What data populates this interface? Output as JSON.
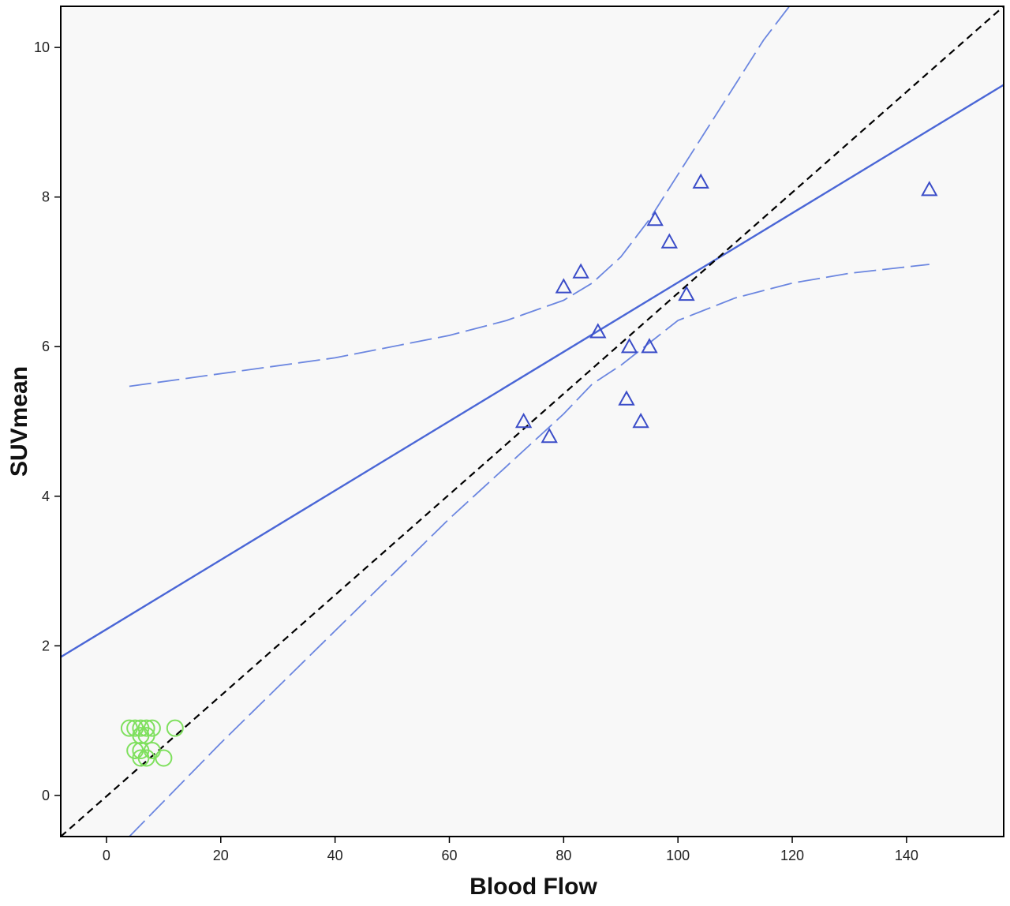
{
  "chart_data": {
    "type": "scatter",
    "title": "",
    "xlabel": "Blood Flow",
    "ylabel": "SUVmean",
    "xlim": [
      -8,
      157
    ],
    "ylim": [
      -0.55,
      10.55
    ],
    "xticks": [
      0,
      20,
      40,
      60,
      80,
      100,
      120,
      140
    ],
    "yticks": [
      0,
      2,
      4,
      6,
      8,
      10
    ],
    "grid": false,
    "legend": "none",
    "colors": {
      "plot_background": "#f8f8f8",
      "frame": "#000000",
      "green_points": "#7fe05e",
      "blue_points": "#3a4cc8",
      "fit_line": "#4a66d6",
      "ci_line": "#6b86e0",
      "identity_line": "#000000"
    },
    "series": [
      {
        "marker": "circle",
        "color": "#7fe05e",
        "points": [
          [
            4,
            0.9
          ],
          [
            5,
            0.9
          ],
          [
            6,
            0.9
          ],
          [
            7,
            0.9
          ],
          [
            8,
            0.9
          ],
          [
            12,
            0.9
          ],
          [
            6,
            0.8
          ],
          [
            7,
            0.8
          ],
          [
            5,
            0.6
          ],
          [
            6,
            0.6
          ],
          [
            8,
            0.6
          ],
          [
            6,
            0.5
          ],
          [
            7,
            0.5
          ],
          [
            10,
            0.5
          ]
        ]
      },
      {
        "marker": "triangle",
        "color": "#3a4cc8",
        "points": [
          [
            73,
            5.0
          ],
          [
            77.5,
            4.8
          ],
          [
            80,
            6.8
          ],
          [
            83,
            7.0
          ],
          [
            86,
            6.2
          ],
          [
            91,
            5.3
          ],
          [
            91.5,
            6.0
          ],
          [
            93.5,
            5.0
          ],
          [
            95,
            6.0
          ],
          [
            96,
            7.7
          ],
          [
            98.5,
            7.4
          ],
          [
            101.5,
            6.7
          ],
          [
            104,
            8.2
          ],
          [
            144,
            8.1
          ]
        ]
      }
    ],
    "lines": [
      {
        "kind": "fit",
        "style": "solid",
        "color": "#4a66d6",
        "points": [
          [
            -8,
            1.85
          ],
          [
            157,
            9.5
          ]
        ]
      },
      {
        "kind": "identity",
        "style": "dashed",
        "color": "#000000",
        "points": [
          [
            -8,
            -0.55
          ],
          [
            157,
            10.55
          ]
        ]
      },
      {
        "kind": "ci-upper",
        "style": "long-dash",
        "color": "#6b86e0",
        "points": [
          [
            4,
            5.47
          ],
          [
            40,
            5.85
          ],
          [
            60,
            6.15
          ],
          [
            70,
            6.35
          ],
          [
            80,
            6.62
          ],
          [
            85,
            6.85
          ],
          [
            90,
            7.2
          ],
          [
            95,
            7.7
          ],
          [
            100,
            8.3
          ],
          [
            105,
            8.9
          ],
          [
            110,
            9.5
          ],
          [
            115,
            10.1
          ],
          [
            120,
            10.6
          ]
        ]
      },
      {
        "kind": "ci-lower",
        "style": "long-dash",
        "color": "#6b86e0",
        "points": [
          [
            4,
            -0.55
          ],
          [
            20,
            0.7
          ],
          [
            40,
            2.2
          ],
          [
            60,
            3.7
          ],
          [
            70,
            4.4
          ],
          [
            80,
            5.1
          ],
          [
            85,
            5.5
          ],
          [
            90,
            5.75
          ],
          [
            95,
            6.05
          ],
          [
            100,
            6.35
          ],
          [
            110,
            6.65
          ],
          [
            120,
            6.85
          ],
          [
            130,
            6.98
          ],
          [
            144,
            7.1
          ]
        ]
      }
    ]
  }
}
